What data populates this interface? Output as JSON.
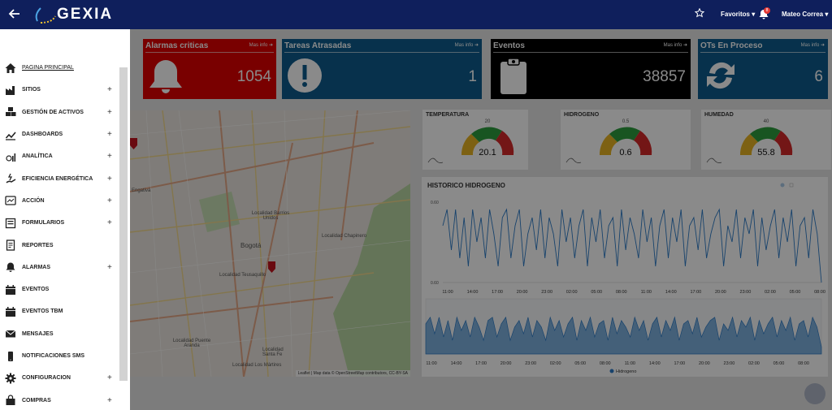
{
  "app": {
    "brand": "GEXIA",
    "favorites_label": "Favoritos",
    "user_name": "Mateo Correa",
    "notif_count": "8"
  },
  "kpis": [
    {
      "title": "Alarmas criticas",
      "more": "Mas info",
      "value": "1054",
      "icon": "bell-icon",
      "color": "#e00000"
    },
    {
      "title": "Tareas Atrasadas",
      "more": "Mas info",
      "value": "1",
      "icon": "exclamation-icon",
      "color": "#0d5c8c"
    },
    {
      "title": "Eventos",
      "more": "Mas info",
      "value": "38857",
      "icon": "clipboard-icon",
      "color": "#000000"
    },
    {
      "title": "OTs En Proceso",
      "more": "Mas info",
      "value": "6",
      "icon": "sync-icon",
      "color": "#0d5c8c"
    }
  ],
  "gauges": [
    {
      "title": "TEMPERATURA",
      "value": "20.1",
      "max": "20"
    },
    {
      "title": "HIDROGENO",
      "value": "0.6",
      "max": "0.5"
    },
    {
      "title": "HUMEDAD",
      "value": "55.8",
      "max": "40"
    }
  ],
  "map": {
    "labels": [
      "Localidad Barrios Unidos",
      "Bogotá",
      "Localidad Teusaquillo",
      "Localidad Chapinero",
      "Localidad Puente Aranda",
      "Localidad Santa Fe",
      "Localidad Los Mártires",
      "Engativá"
    ],
    "attribution": "Leaflet | Map data © OpenStreetMap contributors, CC-BY-SA"
  },
  "chart_data": {
    "type": "line",
    "title": "HISTORICO HIDROGENO",
    "ylabel": "",
    "y_ticks": [
      "0.60",
      "0.60"
    ],
    "x_ticks": [
      "11:00",
      "14:00",
      "17:00",
      "20:00",
      "23:00",
      "02:00",
      "05:00",
      "08:00",
      "11:00",
      "14:00",
      "17:00",
      "20:00",
      "23:00",
      "02:00",
      "05:00",
      "08:00"
    ],
    "navigator_x_ticks": [
      "11:00",
      "14:00",
      "17:00",
      "20:00",
      "23:00",
      "02:00",
      "05:00",
      "08:00",
      "11:00",
      "14:00",
      "17:00",
      "20:00",
      "23:00",
      "02:00",
      "05:00",
      "08:00"
    ],
    "legend": [
      "Hidrogeno"
    ],
    "series": [
      {
        "name": "Hidrogeno",
        "color": "#2b7bc8",
        "values": [
          0.7,
          0.9,
          0.4,
          0.9,
          0.3,
          0.8,
          0.2,
          0.9,
          0.5,
          0.8,
          0.3,
          0.9,
          0.6,
          0.2,
          0.8,
          0.9,
          0.3,
          0.7,
          0.9,
          0.2,
          0.6,
          0.8,
          0.4,
          0.9,
          0.3,
          0.8,
          0.6,
          0.2,
          0.9,
          0.5,
          0.8,
          0.3,
          0.7,
          0.9,
          0.2,
          0.8,
          0.5,
          0.9,
          0.3,
          0.7,
          0.8,
          0.2,
          0.9,
          0.4,
          0.8,
          0.6,
          0.3,
          0.9,
          0.5,
          0.8,
          0.2,
          0.7,
          0.9,
          0.3,
          0.8,
          0.5,
          0.9,
          0.2,
          0.7,
          0.8,
          0.4,
          0.9,
          0.3,
          0.6,
          0.8,
          0.9,
          0.2,
          0.7,
          0.5,
          0.9,
          0.3,
          0.8,
          0.6,
          0.9,
          0.2,
          0.8,
          0.4,
          0.7,
          0.9,
          0.3,
          0.8,
          0.5,
          0.9,
          0.2,
          0.7,
          0.8,
          0.3,
          0.9,
          0.6,
          0.0
        ]
      }
    ]
  },
  "sidebar": {
    "items": [
      {
        "label": "PAGINA PRINCIPAL",
        "icon": "home-icon",
        "plus": "",
        "active": true
      },
      {
        "label": "SITIOS",
        "icon": "factory-icon",
        "plus": "+"
      },
      {
        "label": "GESTIÓN DE ACTIVOS",
        "icon": "cubes-icon",
        "plus": "+"
      },
      {
        "label": "DASHBOARDS",
        "icon": "chart-line-icon",
        "plus": "+"
      },
      {
        "label": "ANALÍTICA",
        "icon": "analytics-icon",
        "plus": "+"
      },
      {
        "label": "EFICIENCIA ENERGÉTICA",
        "icon": "energy-hand-icon",
        "plus": "+"
      },
      {
        "label": "ACCIÓN",
        "icon": "action-icon",
        "plus": "+"
      },
      {
        "label": "FORMULARIOS",
        "icon": "form-icon",
        "plus": "+"
      },
      {
        "label": "REPORTES",
        "icon": "report-icon",
        "plus": ""
      },
      {
        "label": "ALARMAS",
        "icon": "bell-icon",
        "plus": "+"
      },
      {
        "label": "EVENTOS",
        "icon": "calendar-icon",
        "plus": ""
      },
      {
        "label": "EVENTOS TBM",
        "icon": "calendar-icon",
        "plus": ""
      },
      {
        "label": "MENSAJES",
        "icon": "envelope-icon",
        "plus": ""
      },
      {
        "label": "NOTIFICACIONES SMS",
        "icon": "mobile-icon",
        "plus": ""
      },
      {
        "label": "CONFIGURACION",
        "icon": "gear-icon",
        "plus": "+"
      },
      {
        "label": "COMPRAS",
        "icon": "bag-icon",
        "plus": "+"
      }
    ]
  }
}
